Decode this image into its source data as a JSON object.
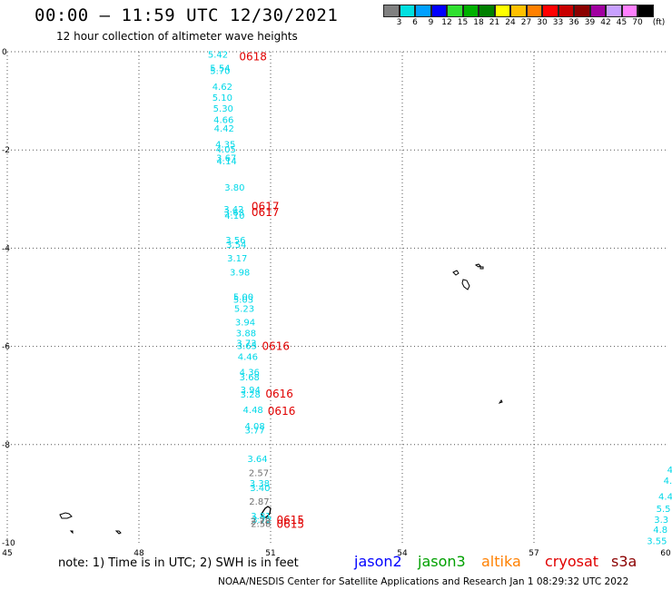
{
  "header": {
    "title": "00:00 – 11:59 UTC 12/30/2021",
    "subtitle": "12 hour collection of altimeter wave heights"
  },
  "legend": {
    "unit": "(ft)",
    "colors": [
      "#808080",
      "#00e0e0",
      "#00a0ff",
      "#0000ff",
      "#30e030",
      "#00b000",
      "#008000",
      "#ffff00",
      "#ffc000",
      "#ff8000",
      "#ff0000",
      "#c80000",
      "#8b0000",
      "#a000a0",
      "#c8a0ff",
      "#ff80ff",
      "#000000"
    ],
    "labels": [
      "3",
      "6",
      "9",
      "12",
      "15",
      "18",
      "21",
      "24",
      "27",
      "30",
      "33",
      "36",
      "39",
      "42",
      "45",
      "70"
    ]
  },
  "map": {
    "lat_ticks": [
      "0",
      "-2",
      "-4",
      "-6",
      "-8",
      "-10"
    ],
    "lon_ticks": [
      "45",
      "48",
      "51",
      "54",
      "57",
      "60"
    ],
    "track_west": {
      "color": "#00d8e8",
      "points": [
        {
          "v": "5.42",
          "lon": 49.8,
          "lat": -0.05
        },
        {
          "v": "5.54",
          "lon": 49.85,
          "lat": -0.32
        },
        {
          "v": "5.70",
          "lon": 49.85,
          "lat": -0.38
        },
        {
          "v": "4.62",
          "lon": 49.9,
          "lat": -0.7
        },
        {
          "v": "5.10",
          "lon": 49.9,
          "lat": -0.92
        },
        {
          "v": "5.30",
          "lon": 49.92,
          "lat": -1.15
        },
        {
          "v": "4.66",
          "lon": 49.93,
          "lat": -1.38
        },
        {
          "v": "4.42",
          "lon": 49.94,
          "lat": -1.55
        },
        {
          "v": "4.35",
          "lon": 49.97,
          "lat": -1.88
        },
        {
          "v": "4.05",
          "lon": 49.98,
          "lat": -1.98
        },
        {
          "v": "3.67",
          "lon": 49.99,
          "lat": -2.15
        },
        {
          "v": "4.14",
          "lon": 50.0,
          "lat": -2.22
        },
        {
          "v": "3.80",
          "lon": 50.18,
          "lat": -2.75
        },
        {
          "v": "3.42",
          "lon": 50.16,
          "lat": -3.2
        },
        {
          "v": "3.63",
          "lon": 50.17,
          "lat": -3.26
        },
        {
          "v": "4.10",
          "lon": 50.18,
          "lat": -3.33
        },
        {
          "v": "3.56",
          "lon": 50.2,
          "lat": -3.83
        },
        {
          "v": "3.54",
          "lon": 50.22,
          "lat": -3.92
        },
        {
          "v": "3.17",
          "lon": 50.24,
          "lat": -4.2
        },
        {
          "v": "3.98",
          "lon": 50.3,
          "lat": -4.48
        },
        {
          "v": "5.00",
          "lon": 50.38,
          "lat": -4.98
        },
        {
          "v": "5.03",
          "lon": 50.38,
          "lat": -5.04
        },
        {
          "v": "5.23",
          "lon": 50.4,
          "lat": -5.22
        },
        {
          "v": "3.94",
          "lon": 50.42,
          "lat": -5.5
        },
        {
          "v": "3.88",
          "lon": 50.44,
          "lat": -5.72
        },
        {
          "v": "3.73",
          "lon": 50.45,
          "lat": -5.92
        },
        {
          "v": "3.65",
          "lon": 50.46,
          "lat": -5.98
        },
        {
          "v": "4.46",
          "lon": 50.48,
          "lat": -6.2
        },
        {
          "v": "4.36",
          "lon": 50.52,
          "lat": -6.52
        },
        {
          "v": "3.68",
          "lon": 50.52,
          "lat": -6.62
        },
        {
          "v": "3.94",
          "lon": 50.54,
          "lat": -6.88
        },
        {
          "v": "3.28",
          "lon": 50.54,
          "lat": -6.97
        },
        {
          "v": "4.48",
          "lon": 50.6,
          "lat": -7.28
        },
        {
          "v": "4.08",
          "lon": 50.64,
          "lat": -7.62
        },
        {
          "v": "3.77",
          "lon": 50.64,
          "lat": -7.7
        },
        {
          "v": "3.64",
          "lon": 50.7,
          "lat": -8.28
        },
        {
          "v": "3.38",
          "lon": 50.75,
          "lat": -8.78
        },
        {
          "v": "3.40",
          "lon": 50.76,
          "lat": -8.87
        },
        {
          "v": "3.81",
          "lon": 50.78,
          "lat": -9.45
        },
        {
          "v": "3.72",
          "lon": 50.8,
          "lat": -9.52
        }
      ]
    },
    "track_gray": {
      "color": "#707070",
      "points": [
        {
          "v": "2.57",
          "lon": 50.73,
          "lat": -8.57
        },
        {
          "v": "2.87",
          "lon": 50.74,
          "lat": -9.15
        },
        {
          "v": "2.78",
          "lon": 50.77,
          "lat": -9.55
        },
        {
          "v": "2.58",
          "lon": 50.78,
          "lat": -9.6
        }
      ]
    },
    "track_east": {
      "color": "#00d8e8",
      "points": [
        {
          "v": "4",
          "lon": 60.1,
          "lat": -8.5
        },
        {
          "v": "4.",
          "lon": 60.05,
          "lat": -8.72
        },
        {
          "v": "4.4",
          "lon": 60.0,
          "lat": -9.05
        },
        {
          "v": "5.5",
          "lon": 59.95,
          "lat": -9.3
        },
        {
          "v": "3.3",
          "lon": 59.9,
          "lat": -9.52
        },
        {
          "v": "4.8",
          "lon": 59.88,
          "lat": -9.72
        },
        {
          "v": "3.55",
          "lon": 59.8,
          "lat": -9.95
        }
      ]
    },
    "time_labels": {
      "color": "#e00000",
      "items": [
        {
          "t": "0618",
          "lon": 50.6,
          "lat": -0.08
        },
        {
          "t": "0617",
          "lon": 50.88,
          "lat": -3.13
        },
        {
          "t": "0617",
          "lon": 50.88,
          "lat": -3.25
        },
        {
          "t": "0616",
          "lon": 51.12,
          "lat": -5.98
        },
        {
          "t": "0616",
          "lon": 51.2,
          "lat": -6.95
        },
        {
          "t": "0616",
          "lon": 51.25,
          "lat": -7.3
        },
        {
          "t": "0615",
          "lon": 51.45,
          "lat": -9.52
        },
        {
          "t": "0615",
          "lon": 51.45,
          "lat": -9.6
        }
      ]
    }
  },
  "footer": {
    "note": "note:  1) Time is in UTC;  2) SWH is in feet",
    "credit": "NOAA/NESDIS Center for Satellite Applications and Research    Jan  1 08:29:32 UTC 2022",
    "satellites": [
      {
        "name": "jason2",
        "color": "#0000ff"
      },
      {
        "name": "jason3",
        "color": "#00a000"
      },
      {
        "name": "altika",
        "color": "#ff8000"
      },
      {
        "name": "cryosat",
        "color": "#e00000"
      },
      {
        "name": "s3a",
        "color": "#8b0000"
      }
    ]
  }
}
